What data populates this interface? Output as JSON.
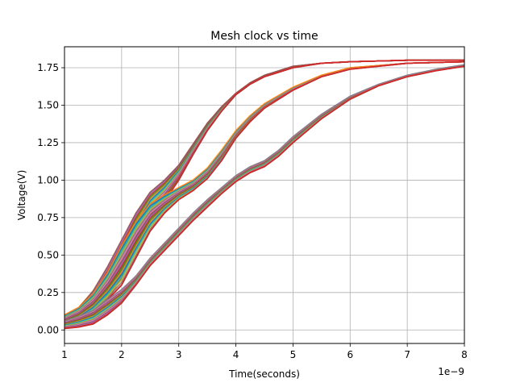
{
  "chart_data": {
    "type": "line",
    "title": "Mesh clock vs time",
    "xlabel": "Time(seconds)",
    "ylabel": "Voltage(V)",
    "x_offset_label": "1e−9",
    "xlim": [
      1,
      8
    ],
    "ylim": [
      -0.09,
      1.89
    ],
    "x_ticks": [
      1,
      2,
      3,
      4,
      5,
      6,
      7,
      8
    ],
    "x_tick_labels": [
      "1",
      "2",
      "3",
      "4",
      "5",
      "6",
      "7",
      "8"
    ],
    "y_ticks": [
      0.0,
      0.25,
      0.5,
      0.75,
      1.0,
      1.25,
      1.5,
      1.75
    ],
    "y_tick_labels": [
      "0.00",
      "0.25",
      "0.50",
      "0.75",
      "1.00",
      "1.25",
      "1.50",
      "1.75"
    ],
    "grid": true,
    "colors": [
      "#1f77b4",
      "#ff7f0e",
      "#2ca02c",
      "#d62728",
      "#9467bd",
      "#8c564b",
      "#e377c2",
      "#7f7f7f",
      "#bcbd22",
      "#17becf"
    ],
    "bands": [
      {
        "x": [
          1.0,
          1.25,
          1.5,
          1.75,
          2.0,
          2.25,
          2.5,
          2.75,
          3.0,
          3.25,
          3.5,
          3.75,
          4.0,
          4.25,
          4.5,
          5.0,
          5.5,
          6.0,
          7.0,
          8.0
        ],
        "lower": [
          0.03,
          0.06,
          0.1,
          0.2,
          0.35,
          0.56,
          0.75,
          0.86,
          1.0,
          1.17,
          1.33,
          1.46,
          1.57,
          1.64,
          1.69,
          1.75,
          1.78,
          1.79,
          1.8,
          1.8
        ],
        "upper": [
          0.1,
          0.15,
          0.26,
          0.42,
          0.6,
          0.78,
          0.92,
          1.0,
          1.1,
          1.24,
          1.38,
          1.49,
          1.58,
          1.65,
          1.7,
          1.76,
          1.78,
          1.79,
          1.8,
          1.8
        ]
      },
      {
        "x": [
          1.0,
          1.25,
          1.5,
          1.75,
          2.0,
          2.25,
          2.5,
          2.75,
          3.0,
          3.25,
          3.5,
          3.75,
          4.0,
          4.25,
          4.5,
          5.0,
          5.5,
          6.0,
          7.0,
          8.0
        ],
        "lower": [
          0.04,
          0.07,
          0.12,
          0.2,
          0.3,
          0.48,
          0.66,
          0.78,
          0.87,
          0.93,
          1.01,
          1.13,
          1.28,
          1.39,
          1.48,
          1.6,
          1.69,
          1.74,
          1.78,
          1.79
        ],
        "upper": [
          0.1,
          0.15,
          0.24,
          0.38,
          0.56,
          0.72,
          0.84,
          0.9,
          0.95,
          1.0,
          1.08,
          1.2,
          1.33,
          1.43,
          1.51,
          1.62,
          1.7,
          1.75,
          1.78,
          1.79
        ]
      },
      {
        "x": [
          1.0,
          1.25,
          1.5,
          1.75,
          2.0,
          2.25,
          2.5,
          2.75,
          3.0,
          3.25,
          3.5,
          3.75,
          4.0,
          4.25,
          4.5,
          4.75,
          5.0,
          5.5,
          6.0,
          6.5,
          7.0,
          7.5,
          8.0
        ],
        "lower": [
          0.01,
          0.02,
          0.04,
          0.1,
          0.18,
          0.3,
          0.43,
          0.53,
          0.63,
          0.73,
          0.82,
          0.91,
          0.99,
          1.05,
          1.09,
          1.16,
          1.25,
          1.41,
          1.54,
          1.63,
          1.69,
          1.73,
          1.76
        ],
        "upper": [
          0.06,
          0.09,
          0.13,
          0.2,
          0.27,
          0.36,
          0.48,
          0.58,
          0.68,
          0.78,
          0.87,
          0.95,
          1.03,
          1.09,
          1.13,
          1.2,
          1.29,
          1.44,
          1.56,
          1.64,
          1.7,
          1.74,
          1.77
        ]
      }
    ],
    "lines_per_band": 16
  }
}
